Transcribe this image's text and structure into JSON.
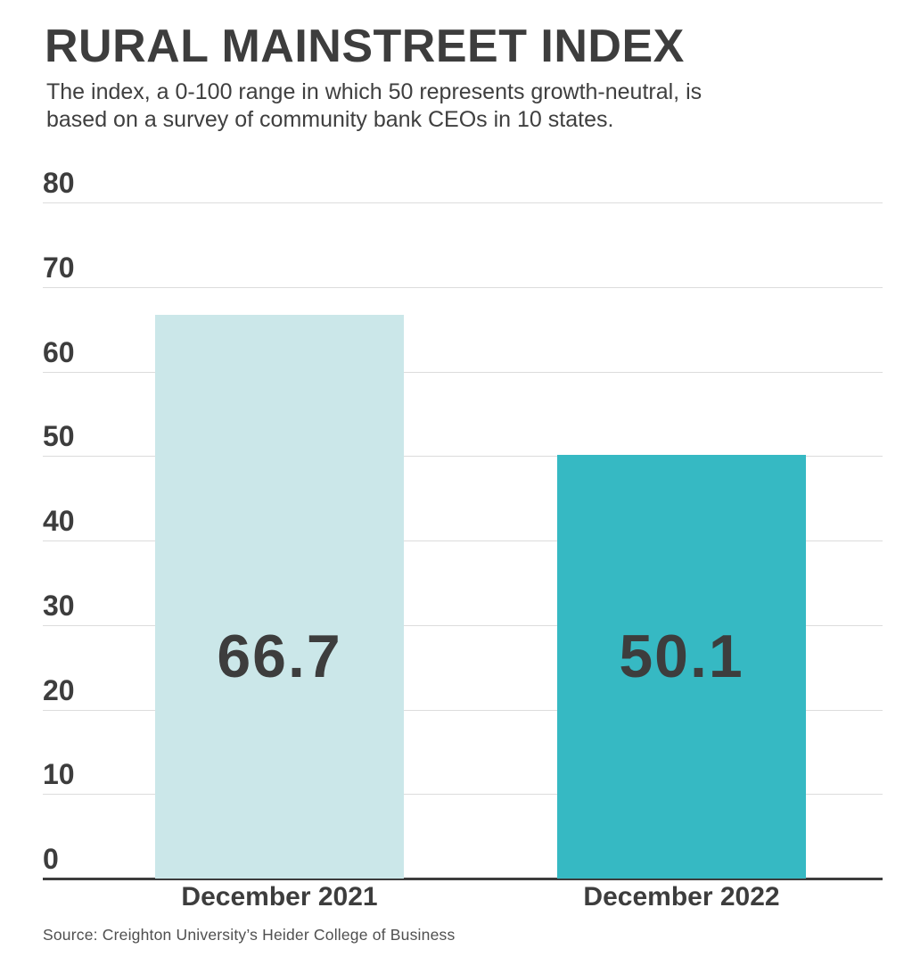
{
  "header": {
    "title": "RURAL MAINSTREET INDEX",
    "subtitle_line1": "The index, a 0-100 range in which 50 represents growth-neutral, is",
    "subtitle_line2": "based on a survey of community bank CEOs in 10 states."
  },
  "chart_data": {
    "type": "bar",
    "title": "RURAL MAINSTREET INDEX",
    "subtitle": "The index, a 0-100 range in which 50 represents growth-neutral, is based on a survey of community bank CEOs in 10 states.",
    "categories": [
      "December 2021",
      "December 2022"
    ],
    "values": [
      66.7,
      50.1
    ],
    "value_labels": [
      "66.7",
      "50.1"
    ],
    "bar_colors": [
      "#cbe7e9",
      "#36b9c3"
    ],
    "xlabel": "",
    "ylabel": "",
    "yticks": [
      0,
      10,
      20,
      30,
      40,
      50,
      60,
      70,
      80
    ],
    "ylim": [
      0,
      80
    ],
    "grid": "horizontal",
    "legend_position": "none"
  },
  "colors": {
    "text_dark": "#3d3d3d",
    "gridline": "#dcdcdc",
    "axis_line": "#3d3d3d",
    "background": "#ffffff"
  },
  "footer": {
    "source": "Source: Creighton University’s Heider College of Business"
  }
}
